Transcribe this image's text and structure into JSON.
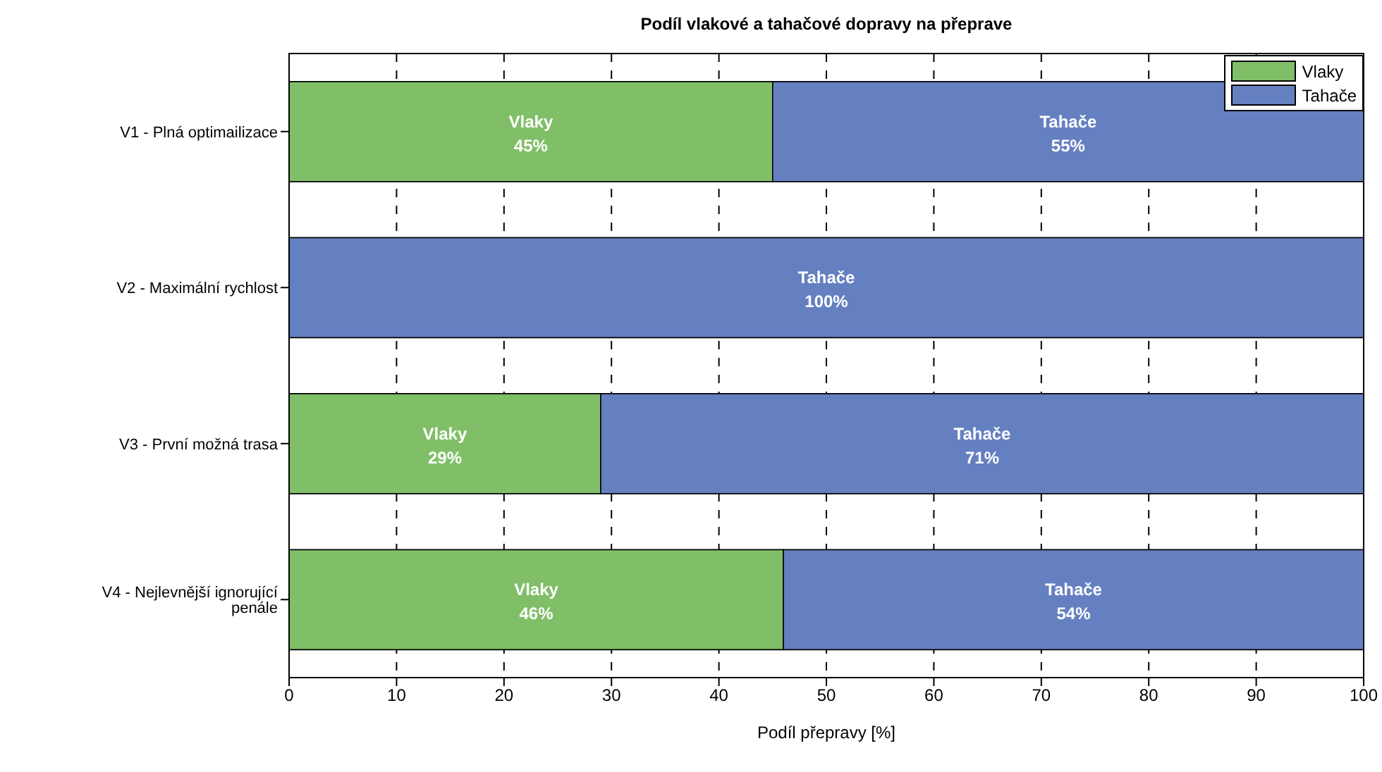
{
  "chart_data": {
    "type": "bar",
    "orientation": "horizontal",
    "stacked": true,
    "title": "Podíl vlakové a tahačové dopravy na přeprave",
    "xlabel": "Podíl přepravy [%]",
    "categories": [
      "V1 - Plná optimailizace",
      "V2 - Maximální rychlost",
      "V3 - První možná trasa",
      "V4 - Nejlevnější ignorující penále"
    ],
    "series": [
      {
        "name": "Vlaky",
        "color": "#80bf67",
        "values": [
          45,
          0,
          29,
          46
        ],
        "value_labels": [
          "45%",
          null,
          "29%",
          "46%"
        ]
      },
      {
        "name": "Tahače",
        "color": "#6580c1",
        "values": [
          55,
          100,
          71,
          54
        ],
        "value_labels": [
          "55%",
          "100%",
          "71%",
          "54%"
        ]
      }
    ],
    "xlim": [
      0,
      100
    ],
    "xticks": [
      0,
      10,
      20,
      30,
      40,
      50,
      60,
      70,
      80,
      90,
      100
    ],
    "grid": "x",
    "legend": "top right"
  }
}
